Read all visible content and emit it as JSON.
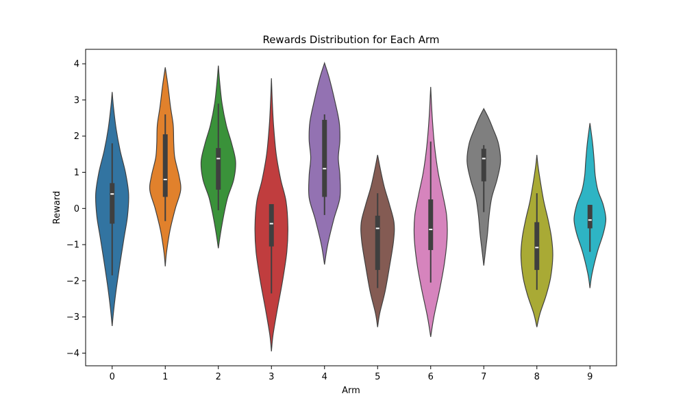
{
  "chart_data": {
    "type": "violin",
    "title": "Rewards Distribution for Each Arm",
    "xlabel": "Arm",
    "ylabel": "Reward",
    "ylim": [
      -4.35,
      4.4
    ],
    "yticks": [
      -4,
      -3,
      -2,
      -1,
      0,
      1,
      2,
      3,
      4
    ],
    "grid": false,
    "legend": "none",
    "categories": [
      "0",
      "1",
      "2",
      "3",
      "4",
      "5",
      "6",
      "7",
      "8",
      "9"
    ],
    "colors": [
      "#3274a1",
      "#e1812c",
      "#3a923a",
      "#c03d3e",
      "#9372b2",
      "#845b53",
      "#d684bd",
      "#7f7f7f",
      "#a9aa35",
      "#2eb4c4"
    ],
    "violins": [
      {
        "min": -3.25,
        "max": 3.22,
        "q1": -0.42,
        "median": 0.4,
        "q3": 0.7,
        "whisker_low": -1.85,
        "whisker_high": 1.8,
        "profile": [
          [
            -3.25,
            0
          ],
          [
            -2.8,
            0.06
          ],
          [
            -2.2,
            0.16
          ],
          [
            -1.5,
            0.3
          ],
          [
            -0.8,
            0.45
          ],
          [
            -0.2,
            0.58
          ],
          [
            0.4,
            0.62
          ],
          [
            1.0,
            0.5
          ],
          [
            1.6,
            0.3
          ],
          [
            2.2,
            0.15
          ],
          [
            2.8,
            0.05
          ],
          [
            3.22,
            0
          ]
        ]
      },
      {
        "min": -1.6,
        "max": 3.9,
        "q1": 0.32,
        "median": 0.8,
        "q3": 2.05,
        "whisker_low": -0.35,
        "whisker_high": 2.6,
        "profile": [
          [
            -1.6,
            0
          ],
          [
            -1.2,
            0.05
          ],
          [
            -0.6,
            0.18
          ],
          [
            0.0,
            0.38
          ],
          [
            0.5,
            0.58
          ],
          [
            0.9,
            0.52
          ],
          [
            1.4,
            0.36
          ],
          [
            1.8,
            0.32
          ],
          [
            2.3,
            0.3
          ],
          [
            2.8,
            0.2
          ],
          [
            3.4,
            0.1
          ],
          [
            3.9,
            0
          ]
        ]
      },
      {
        "min": -1.1,
        "max": 3.95,
        "q1": 0.52,
        "median": 1.38,
        "q3": 1.67,
        "whisker_low": -0.05,
        "whisker_high": 2.9,
        "profile": [
          [
            -1.1,
            0
          ],
          [
            -0.7,
            0.08
          ],
          [
            -0.2,
            0.2
          ],
          [
            0.3,
            0.35
          ],
          [
            0.8,
            0.58
          ],
          [
            1.3,
            0.65
          ],
          [
            1.8,
            0.5
          ],
          [
            2.3,
            0.3
          ],
          [
            2.9,
            0.14
          ],
          [
            3.5,
            0.05
          ],
          [
            3.95,
            0
          ]
        ]
      },
      {
        "min": -3.95,
        "max": 3.6,
        "q1": -1.05,
        "median": -0.42,
        "q3": 0.12,
        "whisker_low": -2.35,
        "whisker_high": 0.12,
        "profile": [
          [
            -3.95,
            0
          ],
          [
            -3.5,
            0.06
          ],
          [
            -2.8,
            0.22
          ],
          [
            -2.0,
            0.42
          ],
          [
            -1.2,
            0.58
          ],
          [
            -0.5,
            0.62
          ],
          [
            0.2,
            0.55
          ],
          [
            0.8,
            0.35
          ],
          [
            1.5,
            0.18
          ],
          [
            2.3,
            0.08
          ],
          [
            3.0,
            0.03
          ],
          [
            3.6,
            0
          ]
        ]
      },
      {
        "min": -1.55,
        "max": 4.02,
        "q1": 0.32,
        "median": 1.1,
        "q3": 2.45,
        "whisker_low": -0.18,
        "whisker_high": 2.6,
        "profile": [
          [
            -1.55,
            0
          ],
          [
            -1.0,
            0.12
          ],
          [
            -0.3,
            0.35
          ],
          [
            0.3,
            0.58
          ],
          [
            0.9,
            0.58
          ],
          [
            1.4,
            0.52
          ],
          [
            1.9,
            0.58
          ],
          [
            2.4,
            0.55
          ],
          [
            3.0,
            0.38
          ],
          [
            3.6,
            0.18
          ],
          [
            4.02,
            0
          ]
        ]
      },
      {
        "min": -3.28,
        "max": 1.48,
        "q1": -1.7,
        "median": -0.55,
        "q3": -0.2,
        "whisker_low": -2.2,
        "whisker_high": 0.42,
        "profile": [
          [
            -3.28,
            0
          ],
          [
            -2.9,
            0.08
          ],
          [
            -2.3,
            0.28
          ],
          [
            -1.6,
            0.45
          ],
          [
            -0.9,
            0.6
          ],
          [
            -0.4,
            0.62
          ],
          [
            0.1,
            0.45
          ],
          [
            0.6,
            0.25
          ],
          [
            1.1,
            0.1
          ],
          [
            1.48,
            0
          ]
        ]
      },
      {
        "min": -3.55,
        "max": 3.36,
        "q1": -1.15,
        "median": -0.58,
        "q3": 0.25,
        "whisker_low": -2.05,
        "whisker_high": 1.85,
        "profile": [
          [
            -3.55,
            0
          ],
          [
            -3.0,
            0.12
          ],
          [
            -2.2,
            0.35
          ],
          [
            -1.5,
            0.52
          ],
          [
            -0.8,
            0.62
          ],
          [
            -0.2,
            0.6
          ],
          [
            0.4,
            0.45
          ],
          [
            1.0,
            0.28
          ],
          [
            1.7,
            0.15
          ],
          [
            2.5,
            0.06
          ],
          [
            3.36,
            0
          ]
        ]
      },
      {
        "min": -1.58,
        "max": 2.76,
        "q1": 0.75,
        "median": 1.38,
        "q3": 1.65,
        "whisker_low": -0.1,
        "whisker_high": 1.75,
        "profile": [
          [
            -1.58,
            0
          ],
          [
            -1.2,
            0.06
          ],
          [
            -0.7,
            0.14
          ],
          [
            -0.2,
            0.2
          ],
          [
            0.3,
            0.3
          ],
          [
            0.8,
            0.5
          ],
          [
            1.3,
            0.63
          ],
          [
            1.8,
            0.55
          ],
          [
            2.2,
            0.35
          ],
          [
            2.5,
            0.18
          ],
          [
            2.76,
            0
          ]
        ]
      },
      {
        "min": -3.28,
        "max": 1.48,
        "q1": -1.7,
        "median": -1.08,
        "q3": -0.38,
        "whisker_low": -2.25,
        "whisker_high": 0.42,
        "profile": [
          [
            -3.28,
            0
          ],
          [
            -2.9,
            0.12
          ],
          [
            -2.4,
            0.35
          ],
          [
            -1.9,
            0.52
          ],
          [
            -1.3,
            0.6
          ],
          [
            -0.8,
            0.55
          ],
          [
            -0.3,
            0.42
          ],
          [
            0.2,
            0.26
          ],
          [
            0.8,
            0.12
          ],
          [
            1.2,
            0.04
          ],
          [
            1.48,
            0
          ]
        ]
      },
      {
        "min": -2.2,
        "max": 2.36,
        "q1": -0.55,
        "median": -0.32,
        "q3": 0.1,
        "whisker_low": -1.2,
        "whisker_high": 0.1,
        "profile": [
          [
            -2.2,
            0
          ],
          [
            -1.8,
            0.08
          ],
          [
            -1.2,
            0.28
          ],
          [
            -0.7,
            0.5
          ],
          [
            -0.3,
            0.6
          ],
          [
            0.1,
            0.5
          ],
          [
            0.5,
            0.3
          ],
          [
            0.9,
            0.2
          ],
          [
            1.3,
            0.16
          ],
          [
            1.8,
            0.1
          ],
          [
            2.36,
            0
          ]
        ]
      }
    ]
  }
}
